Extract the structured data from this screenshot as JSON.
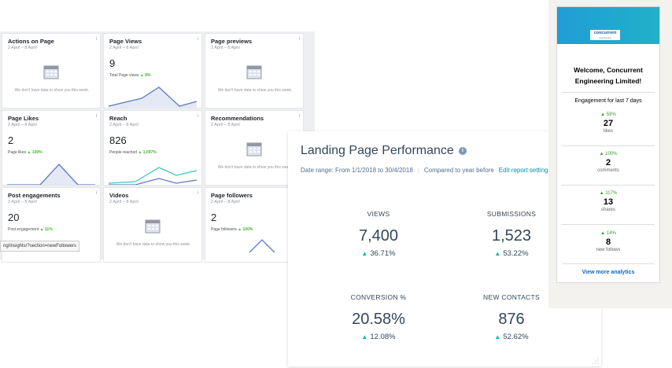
{
  "facebook": {
    "no_data_text": "We don't have data to show you this week.",
    "cards": [
      {
        "title": "Actions on Page",
        "date": "2 April – 8 April",
        "info": "i"
      },
      {
        "title": "Page Views",
        "date": "2 April – 8 April",
        "info": "i",
        "value": "9",
        "sub": "Total Page views",
        "change": "▲ 8%"
      },
      {
        "title": "Page previews",
        "date": "2 April – 8 April",
        "info": "i"
      },
      {
        "title": "Page Likes",
        "date": "2 April – 8 April",
        "info": "i",
        "value": "2",
        "sub": "Page likes",
        "change": "▲ 100%"
      },
      {
        "title": "Reach",
        "date": "2 April – 8 April",
        "info": "i",
        "value": "826",
        "sub": "People reached",
        "change": "▲ 1,097%"
      },
      {
        "title": "Recommendations",
        "date": "2 April – 8 April",
        "info": "i"
      },
      {
        "title": "Post engagements",
        "date": "2 April – 8 April",
        "info": "i",
        "value": "20",
        "sub": "Post engagement",
        "change": "▲ 11%"
      },
      {
        "title": "Videos",
        "date": "2 April – 8 April",
        "info": "i"
      },
      {
        "title": "Page followers",
        "date": "2 April – 8 April",
        "info": "i",
        "value": "2",
        "sub": "Page followers",
        "change": "▲ 100%"
      }
    ],
    "tooltip": "ng/insights/?section=newFollowers",
    "colors": {
      "line": "#5b7bc4",
      "fill": "#e5e9f6",
      "reach_green": "#3fc7b6"
    }
  },
  "hubspot": {
    "title": "Landing Page Performance",
    "info_icon": "i",
    "date_range": "Date range: From 1/1/2018 to 30/4/2018",
    "compared": "Compared to year before",
    "edit_link": "Edit report settings",
    "metrics": [
      {
        "label": "VIEWS",
        "value": "7,400",
        "change": "36.71%"
      },
      {
        "label": "SUBMISSIONS",
        "value": "1,523",
        "change": "53.22%"
      },
      {
        "label": "CONVERSION %",
        "value": "20.58%",
        "change": "12.08%"
      },
      {
        "label": "NEW CONTACTS",
        "value": "876",
        "change": "52.62%"
      }
    ],
    "triangle": "▲",
    "accent": "#00bda5"
  },
  "linkedin": {
    "logo_name": "concurrent",
    "logo_sub": "engineering",
    "welcome": "Welcome, Concurrent Engineering Limited!",
    "engagement_label": "Engagement for last 7 days",
    "stats": [
      {
        "pct": "59%",
        "num": "27",
        "label": "likes"
      },
      {
        "pct": "100%",
        "num": "2",
        "label": "comments"
      },
      {
        "pct": "117%",
        "num": "13",
        "label": "shares"
      },
      {
        "pct": "14%",
        "num": "8",
        "label": "new follows"
      }
    ],
    "more": "View more analytics",
    "triangle": "▲"
  }
}
